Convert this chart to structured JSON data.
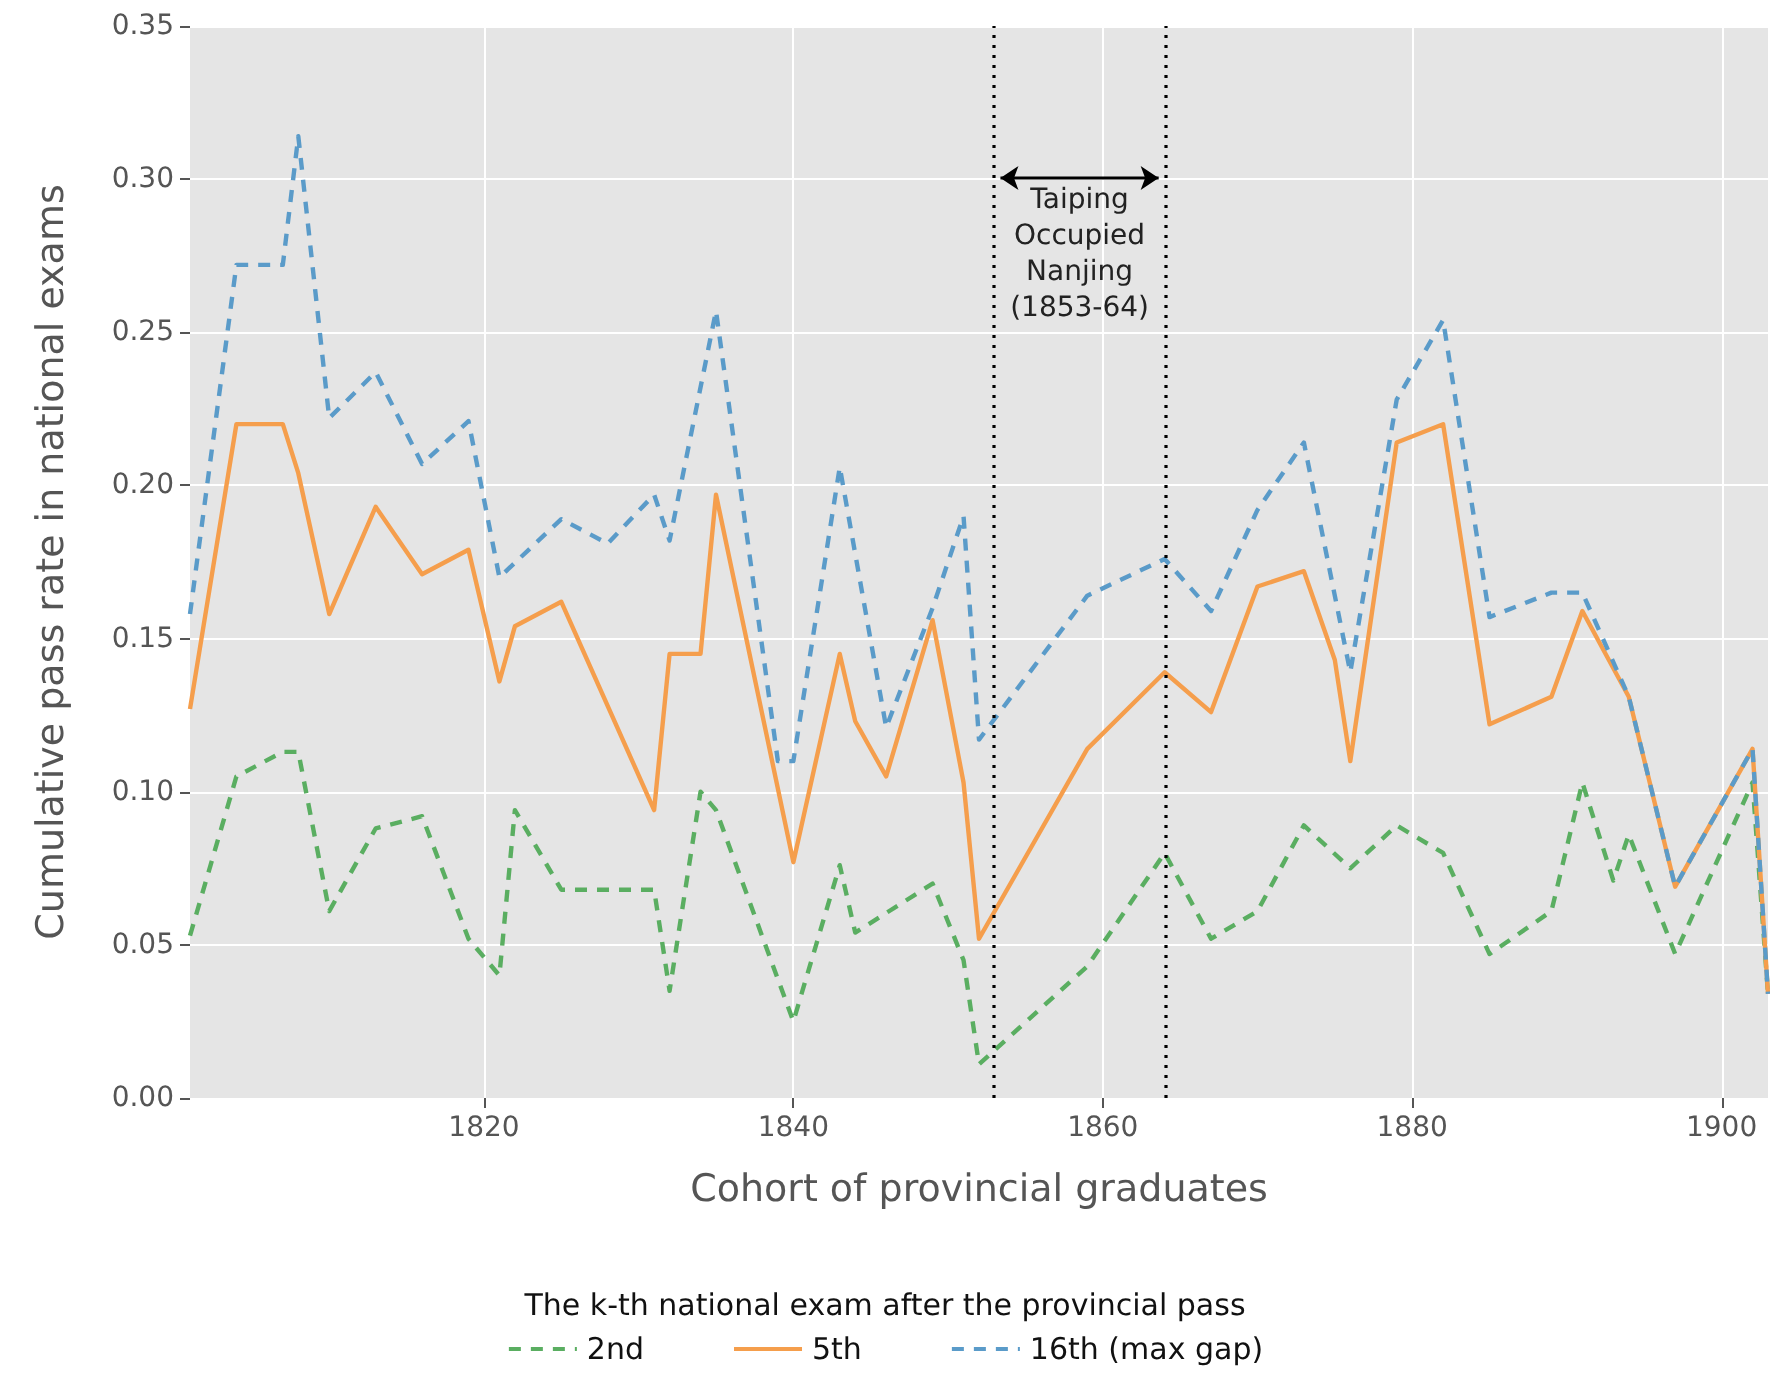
{
  "chart_data": {
    "type": "line",
    "xlabel": "Cohort of provincial graduates",
    "ylabel": "Cumulative pass rate in national exams",
    "legend_title": "The k-th national exam after the provincial pass",
    "legend": "bottom",
    "grid": true,
    "xlim": [
      1801,
      1903
    ],
    "xticks": [
      1820,
      1840,
      1860,
      1880,
      1900
    ],
    "ylim": [
      0,
      0.35
    ],
    "yticks": [
      {
        "value": 0,
        "label": "0.00"
      },
      {
        "value": 0.05,
        "label": "0.05"
      },
      {
        "value": 0.1,
        "label": "0.10"
      },
      {
        "value": 0.15,
        "label": "0.15"
      },
      {
        "value": 0.2,
        "label": "0.20"
      },
      {
        "value": 0.25,
        "label": "0.25"
      },
      {
        "value": 0.3,
        "label": "0.30"
      },
      {
        "value": 0.35,
        "label": "0.35"
      }
    ],
    "series": [
      {
        "name": "2nd",
        "color": "#5aae61",
        "line_style": "dashed",
        "x": [
          1801,
          1804,
          1807,
          1808,
          1810,
          1813,
          1816,
          1819,
          1821,
          1822,
          1825,
          1831,
          1832,
          1834,
          1835,
          1840,
          1843,
          1844,
          1849,
          1851,
          1852,
          1859,
          1864,
          1867,
          1870,
          1873,
          1876,
          1879,
          1882,
          1885,
          1889,
          1891,
          1893,
          1894,
          1897,
          1902,
          1903
        ],
        "values": [
          0.053,
          0.105,
          0.113,
          0.113,
          0.061,
          0.088,
          0.092,
          0.052,
          0.04,
          0.094,
          0.068,
          0.068,
          0.035,
          0.1,
          0.094,
          0.025,
          0.076,
          0.054,
          0.07,
          0.045,
          0.011,
          0.043,
          0.08,
          0.052,
          0.061,
          0.089,
          0.075,
          0.089,
          0.08,
          0.047,
          0.061,
          0.103,
          0.071,
          0.086,
          0.047,
          0.103,
          0.034
        ]
      },
      {
        "name": "5th",
        "color": "#f59e4c",
        "line_style": "solid",
        "x": [
          1801,
          1804,
          1807,
          1808,
          1810,
          1813,
          1816,
          1819,
          1821,
          1822,
          1825,
          1831,
          1832,
          1834,
          1835,
          1840,
          1843,
          1844,
          1846,
          1849,
          1851,
          1852,
          1859,
          1864,
          1867,
          1870,
          1873,
          1875,
          1876,
          1879,
          1882,
          1885,
          1889,
          1891,
          1894,
          1897,
          1902,
          1903
        ],
        "values": [
          0.127,
          0.22,
          0.22,
          0.204,
          0.158,
          0.193,
          0.171,
          0.179,
          0.136,
          0.154,
          0.162,
          0.094,
          0.145,
          0.145,
          0.197,
          0.077,
          0.145,
          0.123,
          0.105,
          0.156,
          0.103,
          0.052,
          0.114,
          0.139,
          0.126,
          0.167,
          0.172,
          0.143,
          0.11,
          0.214,
          0.22,
          0.122,
          0.131,
          0.159,
          0.131,
          0.069,
          0.114,
          0.034
        ]
      },
      {
        "name": "16th (max gap)",
        "color": "#5a9bc9",
        "line_style": "dashed",
        "x": [
          1801,
          1804,
          1807,
          1808,
          1810,
          1813,
          1816,
          1819,
          1821,
          1825,
          1828,
          1831,
          1832,
          1835,
          1839,
          1840,
          1843,
          1846,
          1849,
          1851,
          1852,
          1859,
          1864,
          1867,
          1870,
          1873,
          1876,
          1879,
          1882,
          1885,
          1889,
          1891,
          1894,
          1897,
          1902,
          1903
        ],
        "values": [
          0.158,
          0.272,
          0.272,
          0.314,
          0.222,
          0.237,
          0.207,
          0.221,
          0.17,
          0.189,
          0.181,
          0.197,
          0.182,
          0.257,
          0.11,
          0.11,
          0.206,
          0.121,
          0.16,
          0.19,
          0.117,
          0.164,
          0.176,
          0.159,
          0.192,
          0.214,
          0.139,
          0.228,
          0.254,
          0.157,
          0.165,
          0.165,
          0.131,
          0.069,
          0.114,
          0.034
        ]
      }
    ],
    "ref_lines": [
      {
        "axis": "x",
        "value": 1853,
        "color": "#000000",
        "line_style": "dotted"
      },
      {
        "axis": "x",
        "value": 1864,
        "color": "#000000",
        "line_style": "dotted"
      }
    ],
    "annotations": [
      "Taiping\nOccupied\nNanjing\n(1853-64)"
    ]
  }
}
